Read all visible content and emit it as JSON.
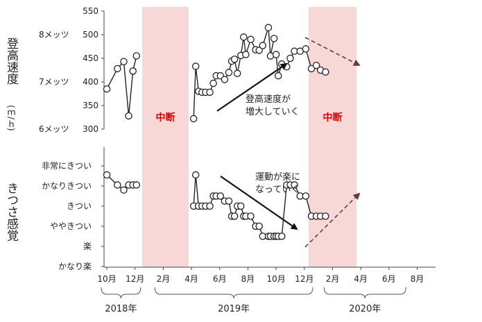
{
  "colors": {
    "band": "#f8d7d7",
    "interrupt_text": "#e00000",
    "line": "#222222",
    "dashed_arrow": "#6b3a3a"
  },
  "chart_data": [
    {
      "type": "line",
      "ylabel_main": "登高速度",
      "ylabel_unit": "(ｍ/ｈ)",
      "ylim": [
        300,
        550
      ],
      "yticks": [
        300,
        350,
        400,
        450,
        500,
        550
      ],
      "mets_labels": [
        {
          "label": "8メッツ",
          "value": 500
        },
        {
          "label": "7メッツ",
          "value": 400
        },
        {
          "label": "6メッツ",
          "value": 300
        }
      ],
      "x": [
        0,
        0.75,
        1.2,
        1.55,
        1.85,
        2.1,
        6.15,
        6.3,
        6.5,
        6.75,
        7.0,
        7.3,
        7.55,
        7.75,
        8.05,
        8.35,
        8.65,
        8.85,
        9.05,
        9.25,
        9.5,
        9.7,
        9.85,
        10.2,
        10.55,
        10.8,
        11.05,
        11.45,
        11.6,
        11.85,
        12.0,
        12.15,
        12.4,
        12.75,
        13.0,
        13.3,
        13.7,
        14.1,
        14.5,
        14.85,
        15.15,
        15.5
      ],
      "values": [
        385,
        428,
        443,
        328,
        423,
        455,
        322,
        433,
        380,
        378,
        378,
        378,
        397,
        413,
        413,
        405,
        420,
        444,
        448,
        418,
        456,
        495,
        458,
        490,
        468,
        467,
        477,
        515,
        455,
        492,
        458,
        413,
        438,
        432,
        450,
        465,
        465,
        470,
        428,
        435,
        425,
        421
      ],
      "breaks_after": [
        5,
        29
      ],
      "series_segments": [
        [
          0,
          5
        ],
        [
          6,
          29
        ],
        [
          30,
          41
        ]
      ]
    },
    {
      "type": "line",
      "ylabel_main": "きつさ感覚",
      "categories": [
        "かなり楽",
        "楽",
        "ややきつい",
        "きつい",
        "かなりきつい",
        "非常にきつい"
      ],
      "x": [
        0,
        0.75,
        1.2,
        1.55,
        1.85,
        2.1,
        6.15,
        6.3,
        6.5,
        6.75,
        7.0,
        7.3,
        7.55,
        7.75,
        8.05,
        8.35,
        8.65,
        8.85,
        9.05,
        9.25,
        9.5,
        9.7,
        9.85,
        10.2,
        10.55,
        10.8,
        11.05,
        11.45,
        11.6,
        11.85,
        12.0,
        12.15,
        12.4,
        12.75,
        13.0,
        13.3,
        13.7,
        14.1,
        14.5,
        14.85,
        15.15,
        15.5
      ],
      "values": [
        4.55,
        4.05,
        3.8,
        4.05,
        4.05,
        4.05,
        3.0,
        4.55,
        3.0,
        3.0,
        3.0,
        3.0,
        3.5,
        3.5,
        3.5,
        3.25,
        3.25,
        2.5,
        2.5,
        3.0,
        3.0,
        2.5,
        2.5,
        2.5,
        2.0,
        2.0,
        1.5,
        1.5,
        1.5,
        1.5,
        1.5,
        1.5,
        1.5,
        4.05,
        4.05,
        4.05,
        3.5,
        3.5,
        2.5,
        2.5,
        2.5,
        2.5
      ],
      "series_segments": [
        [
          0,
          5
        ],
        [
          6,
          29
        ],
        [
          30,
          41
        ]
      ]
    }
  ],
  "x_axis": {
    "tick_labels": [
      "10月",
      "12月",
      "2月",
      "4月",
      "6月",
      "8月",
      "10月",
      "12月",
      "2月",
      "4月",
      "6月",
      "8月"
    ],
    "tick_positions": [
      0,
      2,
      4,
      6,
      8,
      10,
      12,
      14,
      16,
      18,
      20,
      22
    ],
    "domain": [
      -0.2,
      23.3
    ]
  },
  "years": [
    {
      "label": "2018年",
      "from": -0.4,
      "to": 2.4
    },
    {
      "label": "2019年",
      "from": 3.4,
      "to": 14.6
    },
    {
      "label": "2020年",
      "from": 15.4,
      "to": 21.2
    }
  ],
  "bands": [
    {
      "label": "中断",
      "from": 2.5,
      "to": 5.8
    },
    {
      "label": "中断",
      "from": 14.3,
      "to": 17.7
    }
  ],
  "annotations": {
    "speed_up_line1": "登高速度が",
    "speed_up_line2": "増大していく",
    "easier_line1": "運動が楽に",
    "easier_line2": "なっていく"
  }
}
